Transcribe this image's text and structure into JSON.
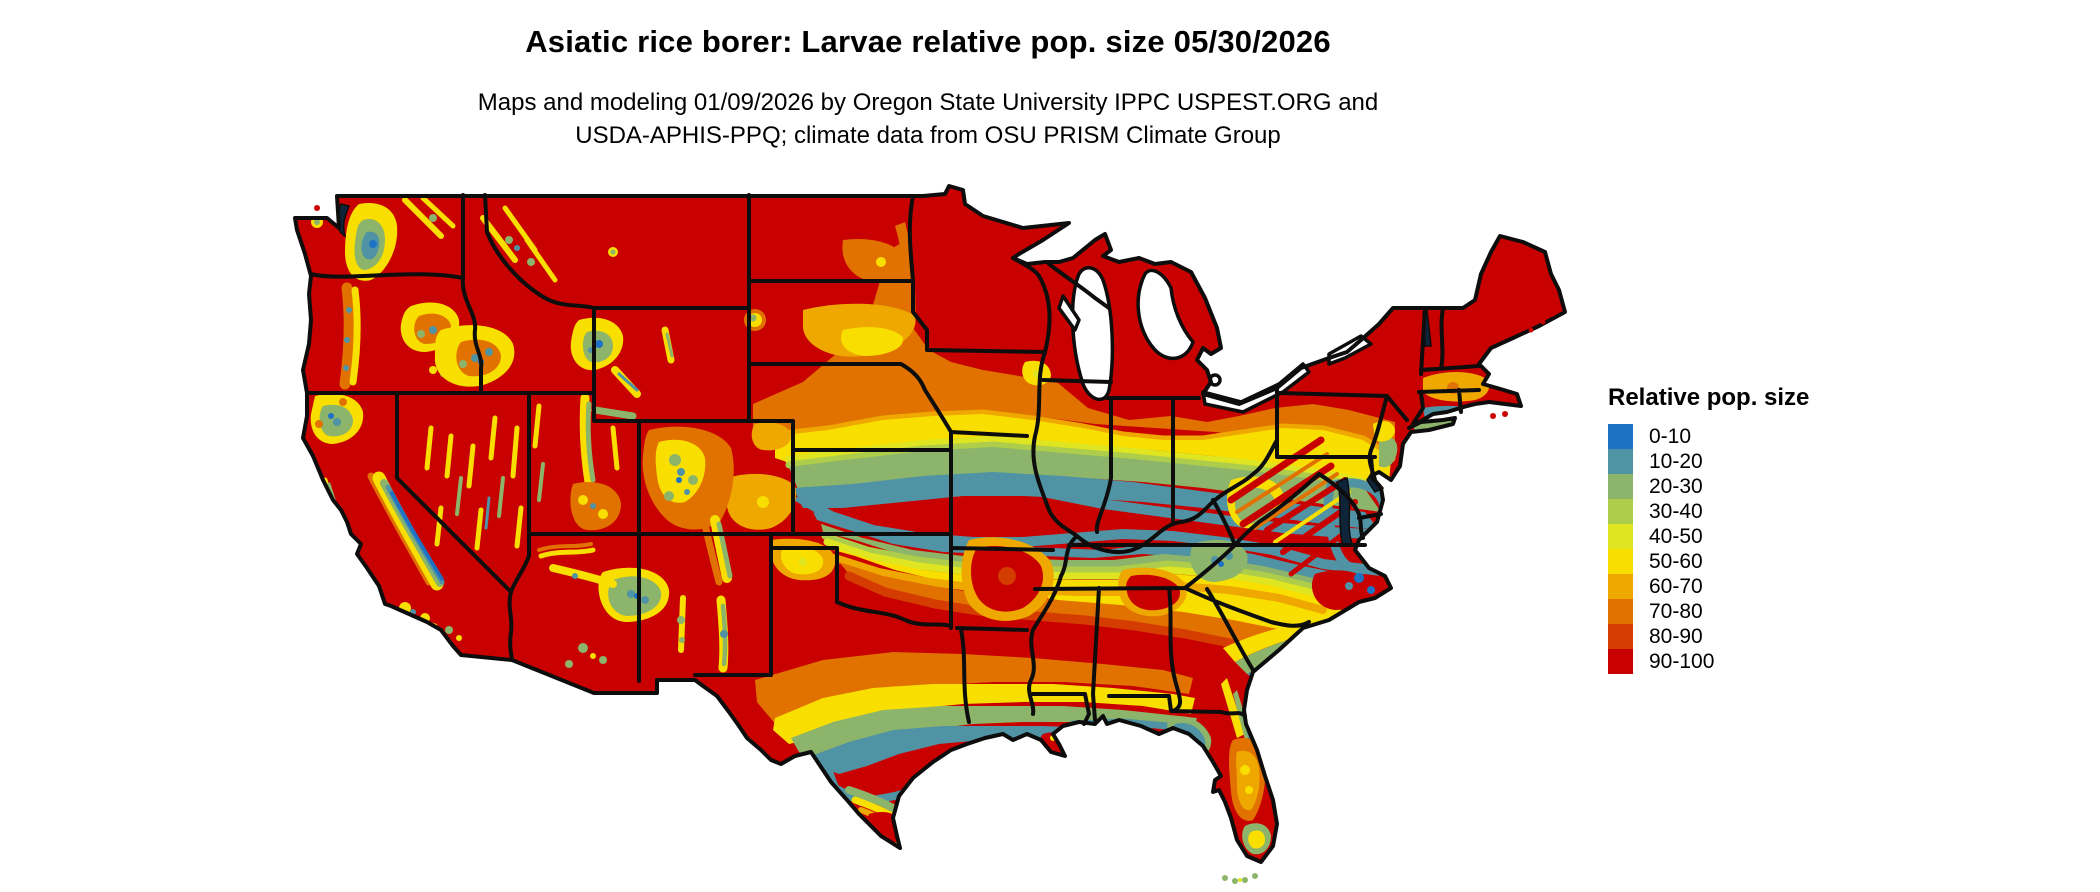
{
  "header": {
    "title": "Asiatic rice borer: Larvae relative pop. size 05/30/2026",
    "subtitle_line1": "Maps and modeling 01/09/2026 by Oregon State University IPPC USPEST.ORG and",
    "subtitle_line2": "USDA-APHIS-PPQ; climate data from OSU PRISM Climate Group"
  },
  "legend": {
    "title": "Relative pop. size",
    "items": [
      {
        "label": "0-10",
        "color": "#1d72c6"
      },
      {
        "label": "10-20",
        "color": "#4f93a4"
      },
      {
        "label": "20-30",
        "color": "#8cb46a"
      },
      {
        "label": "30-40",
        "color": "#aecd4a"
      },
      {
        "label": "40-50",
        "color": "#e0e521"
      },
      {
        "label": "50-60",
        "color": "#f8df00"
      },
      {
        "label": "60-70",
        "color": "#efa800"
      },
      {
        "label": "70-80",
        "color": "#e17200"
      },
      {
        "label": "80-90",
        "color": "#d53c00"
      },
      {
        "label": "90-100",
        "color": "#c90000"
      }
    ]
  },
  "map": {
    "type": "raster choropleth",
    "region_shown": "Continental United States with state borders",
    "value_shown": "Relative pop. size (0-100)"
  }
}
